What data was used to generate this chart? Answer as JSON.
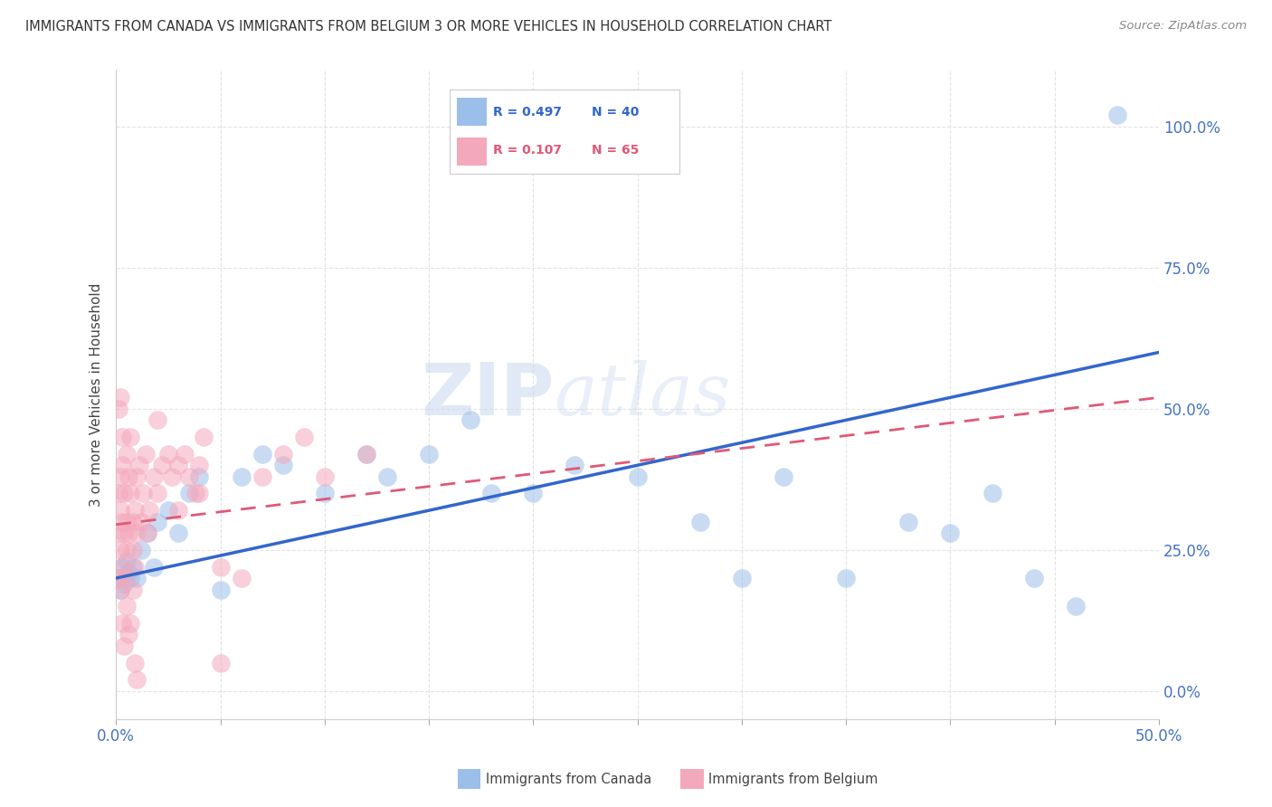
{
  "title": "IMMIGRANTS FROM CANADA VS IMMIGRANTS FROM BELGIUM 3 OR MORE VEHICLES IN HOUSEHOLD CORRELATION CHART",
  "source": "Source: ZipAtlas.com",
  "ylabel": "3 or more Vehicles in Household",
  "xlim": [
    0.0,
    0.5
  ],
  "ylim": [
    -0.05,
    1.1
  ],
  "canada_color": "#9BBFE8",
  "belgium_color": "#F4A8BC",
  "canada_line_color": "#3366CC",
  "belgium_line_color": "#E05878",
  "R_canada": 0.497,
  "N_canada": 40,
  "R_belgium": 0.107,
  "N_belgium": 65,
  "watermark_zip": "ZIP",
  "watermark_atlas": "atlas",
  "canada_x": [
    0.001,
    0.002,
    0.003,
    0.004,
    0.005,
    0.006,
    0.007,
    0.008,
    0.01,
    0.012,
    0.015,
    0.018,
    0.02,
    0.025,
    0.03,
    0.035,
    0.04,
    0.05,
    0.06,
    0.07,
    0.08,
    0.1,
    0.12,
    0.13,
    0.15,
    0.17,
    0.18,
    0.2,
    0.22,
    0.25,
    0.28,
    0.3,
    0.32,
    0.35,
    0.38,
    0.4,
    0.42,
    0.44,
    0.46,
    0.48
  ],
  "canada_y": [
    0.2,
    0.18,
    0.22,
    0.19,
    0.23,
    0.21,
    0.2,
    0.22,
    0.2,
    0.25,
    0.28,
    0.22,
    0.3,
    0.32,
    0.28,
    0.35,
    0.38,
    0.18,
    0.38,
    0.42,
    0.4,
    0.35,
    0.42,
    0.38,
    0.42,
    0.48,
    0.35,
    0.35,
    0.4,
    0.38,
    0.3,
    0.2,
    0.38,
    0.2,
    0.3,
    0.28,
    0.35,
    0.2,
    0.15,
    1.02
  ],
  "belgium_x": [
    0.001,
    0.001,
    0.001,
    0.002,
    0.002,
    0.002,
    0.002,
    0.003,
    0.003,
    0.003,
    0.004,
    0.004,
    0.004,
    0.005,
    0.005,
    0.005,
    0.006,
    0.006,
    0.007,
    0.007,
    0.008,
    0.008,
    0.009,
    0.009,
    0.01,
    0.01,
    0.011,
    0.012,
    0.013,
    0.014,
    0.015,
    0.016,
    0.018,
    0.02,
    0.022,
    0.025,
    0.027,
    0.03,
    0.033,
    0.035,
    0.038,
    0.04,
    0.042,
    0.05,
    0.06,
    0.07,
    0.08,
    0.09,
    0.1,
    0.12,
    0.001,
    0.002,
    0.003,
    0.003,
    0.004,
    0.005,
    0.006,
    0.007,
    0.008,
    0.009,
    0.01,
    0.02,
    0.03,
    0.04,
    0.05
  ],
  "belgium_y": [
    0.2,
    0.28,
    0.35,
    0.25,
    0.32,
    0.38,
    0.18,
    0.3,
    0.22,
    0.4,
    0.28,
    0.35,
    0.2,
    0.42,
    0.25,
    0.3,
    0.38,
    0.28,
    0.35,
    0.45,
    0.3,
    0.25,
    0.32,
    0.22,
    0.38,
    0.28,
    0.4,
    0.3,
    0.35,
    0.42,
    0.28,
    0.32,
    0.38,
    0.35,
    0.4,
    0.42,
    0.38,
    0.4,
    0.42,
    0.38,
    0.35,
    0.4,
    0.45,
    0.22,
    0.2,
    0.38,
    0.42,
    0.45,
    0.38,
    0.42,
    0.5,
    0.52,
    0.45,
    0.12,
    0.08,
    0.15,
    0.1,
    0.12,
    0.18,
    0.05,
    0.02,
    0.48,
    0.32,
    0.35,
    0.05
  ]
}
